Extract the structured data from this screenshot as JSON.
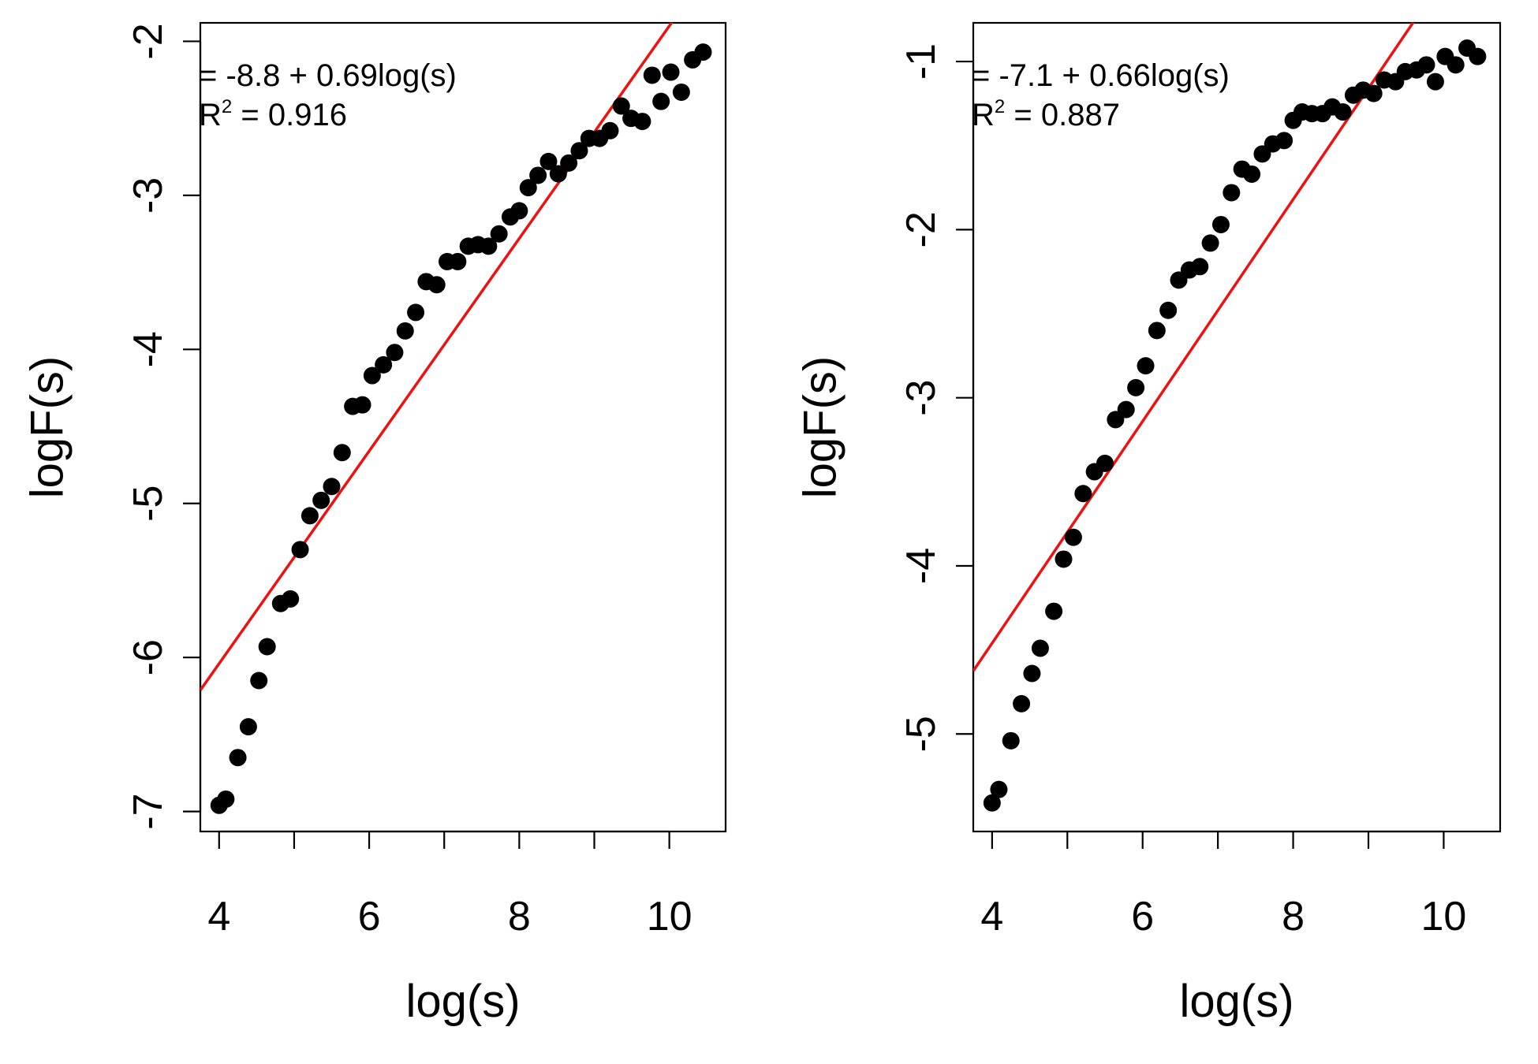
{
  "chart_data": [
    {
      "type": "scatter",
      "xlabel": "log(s)",
      "ylabel": "logF(s)",
      "xlim": [
        3.75,
        10.75
      ],
      "ylim": [
        -7.13,
        -1.88
      ],
      "xticks": [
        4,
        5,
        6,
        7,
        8,
        9,
        10
      ],
      "xtick_labels": [
        "4",
        "",
        "6",
        "",
        "8",
        "",
        "10"
      ],
      "yticks": [
        -7,
        -6,
        -5,
        -4,
        -3,
        -2
      ],
      "ytick_labels": [
        "-7",
        "-6",
        "-5",
        "-4",
        "-3",
        "-2"
      ],
      "annotation_line1": "= -8.8 + 0.69log(s)",
      "annotation_r2_prefix": "R",
      "annotation_r2_sup": "2",
      "annotation_r2_value": " =  0.916",
      "fit": {
        "intercept": -8.8,
        "slope": 0.69,
        "color": "#ee1111"
      },
      "grid": false,
      "point_color": "#000000",
      "points": [
        [
          4.0,
          -6.96
        ],
        [
          4.09,
          -6.92
        ],
        [
          4.25,
          -6.65
        ],
        [
          4.39,
          -6.45
        ],
        [
          4.53,
          -6.15
        ],
        [
          4.64,
          -5.93
        ],
        [
          4.82,
          -5.65
        ],
        [
          4.95,
          -5.62
        ],
        [
          5.08,
          -5.3
        ],
        [
          5.21,
          -5.08
        ],
        [
          5.36,
          -4.98
        ],
        [
          5.5,
          -4.89
        ],
        [
          5.64,
          -4.67
        ],
        [
          5.78,
          -4.37
        ],
        [
          5.91,
          -4.36
        ],
        [
          6.04,
          -4.17
        ],
        [
          6.19,
          -4.1
        ],
        [
          6.34,
          -4.02
        ],
        [
          6.48,
          -3.88
        ],
        [
          6.62,
          -3.76
        ],
        [
          6.76,
          -3.56
        ],
        [
          6.9,
          -3.58
        ],
        [
          7.04,
          -3.43
        ],
        [
          7.18,
          -3.43
        ],
        [
          7.32,
          -3.33
        ],
        [
          7.45,
          -3.32
        ],
        [
          7.59,
          -3.33
        ],
        [
          7.73,
          -3.25
        ],
        [
          7.88,
          -3.14
        ],
        [
          8.0,
          -3.1
        ],
        [
          8.12,
          -2.95
        ],
        [
          8.25,
          -2.87
        ],
        [
          8.39,
          -2.78
        ],
        [
          8.52,
          -2.86
        ],
        [
          8.66,
          -2.79
        ],
        [
          8.8,
          -2.71
        ],
        [
          8.93,
          -2.63
        ],
        [
          9.07,
          -2.63
        ],
        [
          9.21,
          -2.58
        ],
        [
          9.36,
          -2.42
        ],
        [
          9.49,
          -2.5
        ],
        [
          9.64,
          -2.52
        ],
        [
          9.77,
          -2.22
        ],
        [
          9.89,
          -2.39
        ],
        [
          10.02,
          -2.2
        ],
        [
          10.16,
          -2.33
        ],
        [
          10.31,
          -2.12
        ],
        [
          10.45,
          -2.07
        ]
      ]
    },
    {
      "type": "scatter",
      "xlabel": "log(s)",
      "ylabel": "logF(s)",
      "xlim": [
        3.75,
        10.75
      ],
      "ylim": [
        -5.58,
        -0.77
      ],
      "xticks": [
        4,
        5,
        6,
        7,
        8,
        9,
        10
      ],
      "xtick_labels": [
        "4",
        "",
        "6",
        "",
        "8",
        "",
        "10"
      ],
      "yticks": [
        -5,
        -4,
        -3,
        -2,
        -1
      ],
      "ytick_labels": [
        "-5",
        "-4",
        "-3",
        "-2",
        "-1"
      ],
      "annotation_line1": "= -7.1 + 0.66log(s)",
      "annotation_r2_prefix": "R",
      "annotation_r2_sup": "2",
      "annotation_r2_value": " =  0.887",
      "fit": {
        "intercept": -7.1,
        "slope": 0.66,
        "color": "#ee1111"
      },
      "grid": false,
      "point_color": "#000000",
      "points": [
        [
          4.0,
          -5.41
        ],
        [
          4.09,
          -5.33
        ],
        [
          4.25,
          -5.04
        ],
        [
          4.39,
          -4.82
        ],
        [
          4.53,
          -4.64
        ],
        [
          4.64,
          -4.49
        ],
        [
          4.82,
          -4.27
        ],
        [
          4.95,
          -3.96
        ],
        [
          5.08,
          -3.83
        ],
        [
          5.21,
          -3.57
        ],
        [
          5.36,
          -3.44
        ],
        [
          5.5,
          -3.39
        ],
        [
          5.64,
          -3.13
        ],
        [
          5.78,
          -3.07
        ],
        [
          5.91,
          -2.94
        ],
        [
          6.04,
          -2.81
        ],
        [
          6.19,
          -2.6
        ],
        [
          6.34,
          -2.48
        ],
        [
          6.48,
          -2.3
        ],
        [
          6.62,
          -2.24
        ],
        [
          6.76,
          -2.22
        ],
        [
          6.9,
          -2.08
        ],
        [
          7.04,
          -1.97
        ],
        [
          7.18,
          -1.78
        ],
        [
          7.32,
          -1.64
        ],
        [
          7.45,
          -1.67
        ],
        [
          7.59,
          -1.55
        ],
        [
          7.73,
          -1.49
        ],
        [
          7.88,
          -1.47
        ],
        [
          8.0,
          -1.35
        ],
        [
          8.12,
          -1.3
        ],
        [
          8.25,
          -1.31
        ],
        [
          8.39,
          -1.31
        ],
        [
          8.52,
          -1.27
        ],
        [
          8.66,
          -1.3
        ],
        [
          8.8,
          -1.2
        ],
        [
          8.93,
          -1.17
        ],
        [
          9.07,
          -1.19
        ],
        [
          9.21,
          -1.11
        ],
        [
          9.36,
          -1.12
        ],
        [
          9.49,
          -1.06
        ],
        [
          9.64,
          -1.05
        ],
        [
          9.77,
          -1.02
        ],
        [
          9.89,
          -1.12
        ],
        [
          10.02,
          -0.97
        ],
        [
          10.16,
          -1.02
        ],
        [
          10.31,
          -0.92
        ],
        [
          10.45,
          -0.97
        ]
      ]
    }
  ]
}
